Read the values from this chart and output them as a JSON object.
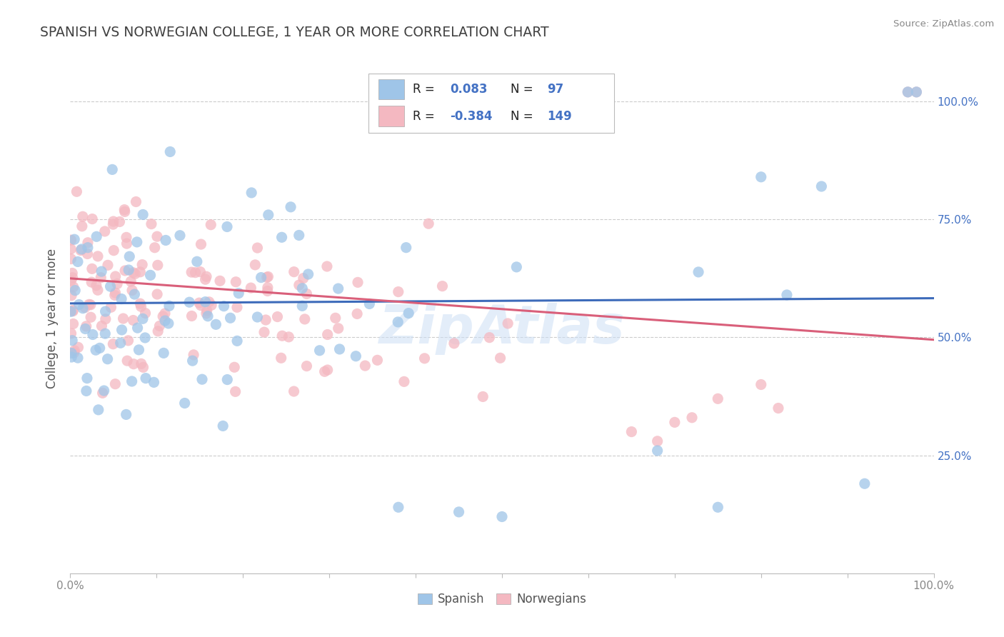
{
  "title": "SPANISH VS NORWEGIAN COLLEGE, 1 YEAR OR MORE CORRELATION CHART",
  "source": "Source: ZipAtlas.com",
  "ylabel_label": "College, 1 year or more",
  "watermark": "ZipAtlas",
  "blue_color": "#9fc5e8",
  "pink_color": "#f4b8c1",
  "blue_line_color": "#3d6bba",
  "pink_line_color": "#d95f7a",
  "legend_text_color": "#4472c4",
  "title_color": "#404040",
  "blue_trend_y_start": 0.572,
  "blue_trend_y_end": 0.583,
  "pink_trend_y_start": 0.625,
  "pink_trend_y_end": 0.495,
  "xlim": [
    0.0,
    1.0
  ],
  "ylim": [
    0.0,
    1.08
  ],
  "x_tick_positions": [
    0.0,
    0.1,
    0.2,
    0.3,
    0.4,
    0.5,
    0.6,
    0.7,
    0.8,
    0.9,
    1.0
  ],
  "y_tick_positions": [
    0.25,
    0.5,
    0.75,
    1.0
  ],
  "grid_color": "#cccccc",
  "marker_size": 120,
  "marker_edge_width": 2.0
}
